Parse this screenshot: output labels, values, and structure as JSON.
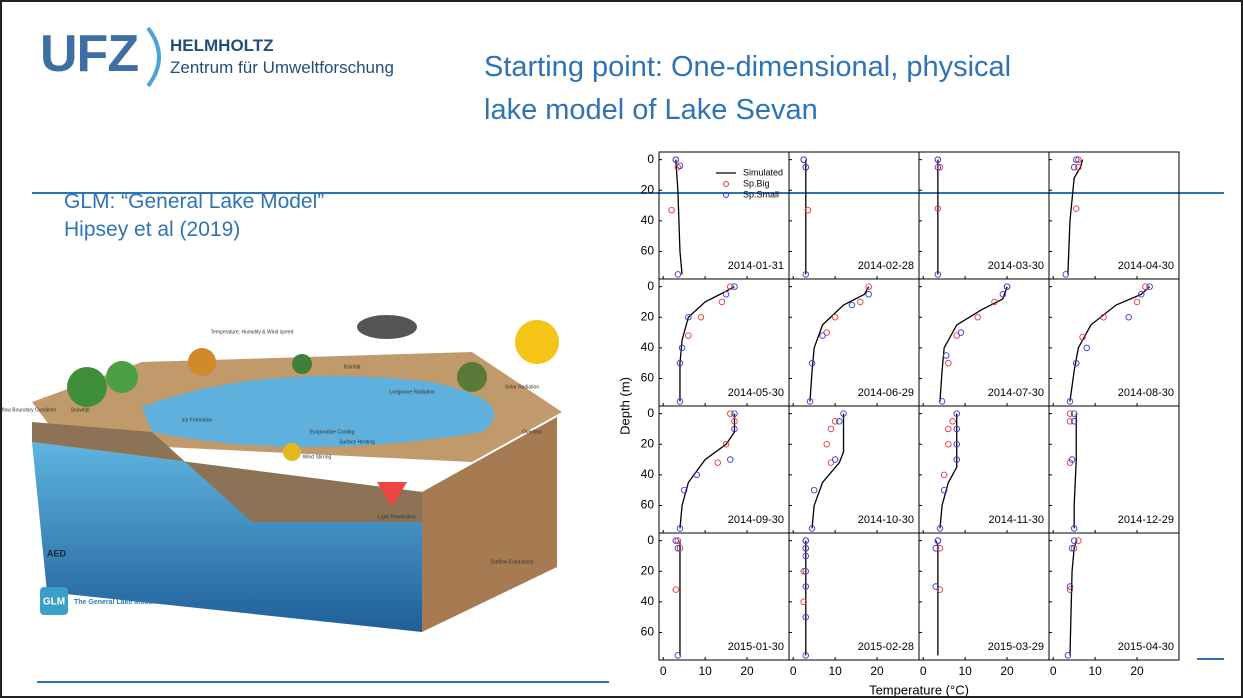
{
  "header": {
    "logo": "UFZ",
    "org": "HELMHOLTZ",
    "org_sub": "Zentrum für Umweltforschung",
    "title": "Starting point: One-dimensional, physical lake model of Lake Sevan"
  },
  "text": [
    "GLM: “General Lake Model”",
    "Hipsey et al (2019)"
  ],
  "figure": {
    "logo": "GLM",
    "caption": "The General Lake Model",
    "credit": "AED",
    "labels": [
      "Inflow Boundary Condition",
      "Snowfall",
      "Temperature, Humidity & Wind speed",
      "Rainfall",
      "Longwave Radiation",
      "Solar Radiation",
      "Ice Formation",
      "Evaporative Cooling",
      "Wind Stirring",
      "Surface Heating",
      "Light Penetration",
      "Overflow",
      "Outflow Extractions"
    ]
  },
  "chart_data": {
    "type": "profile",
    "ylabel": "Depth (m)",
    "xlabel": "Temperature (°C)",
    "xlim": [
      -1,
      30
    ],
    "ylim": [
      -5,
      78
    ],
    "y_inverted": true,
    "xticks": [
      0,
      10,
      20
    ],
    "yticks": [
      0,
      20,
      40,
      60
    ],
    "series": [
      {
        "name": "Simulated",
        "color": "#000000"
      },
      {
        "name": "Sp.Big",
        "color": "#e8383d"
      },
      {
        "name": "Sp.Small",
        "color": "#3a3acf"
      }
    ],
    "panels": [
      {
        "label": "2014-01-31",
        "simulated": {
          "x": [
            3,
            3.5,
            4,
            4.5
          ],
          "y": [
            0,
            20,
            60,
            75
          ]
        },
        "big": {
          "x": [
            3,
            3.5,
            2
          ],
          "y": [
            0,
            5,
            33
          ]
        },
        "small": {
          "x": [
            3,
            4,
            3.5
          ],
          "y": [
            0,
            4,
            75
          ]
        }
      },
      {
        "label": "2014-02-28",
        "simulated": {
          "x": [
            3,
            3,
            3,
            3
          ],
          "y": [
            0,
            5,
            40,
            75
          ]
        },
        "big": {
          "x": [
            2.5,
            3,
            3.5
          ],
          "y": [
            0,
            5,
            33
          ]
        },
        "small": {
          "x": [
            2.5,
            3,
            3
          ],
          "y": [
            0,
            5,
            75
          ]
        }
      },
      {
        "label": "2014-03-30",
        "simulated": {
          "x": [
            3.5,
            3.5,
            3.5
          ],
          "y": [
            0,
            40,
            75
          ]
        },
        "big": {
          "x": [
            3.5,
            4,
            3.5
          ],
          "y": [
            0,
            5,
            32
          ]
        },
        "small": {
          "x": [
            3.5,
            3.5,
            3.5
          ],
          "y": [
            0,
            5,
            75
          ]
        }
      },
      {
        "label": "2014-04-30",
        "simulated": {
          "x": [
            7,
            6.5,
            5,
            4,
            3.5
          ],
          "y": [
            0,
            5,
            12,
            40,
            75
          ]
        },
        "big": {
          "x": [
            6,
            6,
            5.5
          ],
          "y": [
            0,
            5,
            32
          ]
        },
        "small": {
          "x": [
            5.5,
            5,
            3
          ],
          "y": [
            0,
            5,
            75
          ]
        }
      },
      {
        "label": "2014-05-30",
        "simulated": {
          "x": [
            17,
            15,
            10,
            6,
            4.5,
            4,
            4
          ],
          "y": [
            0,
            3,
            10,
            20,
            35,
            50,
            75
          ]
        },
        "big": {
          "x": [
            16,
            14,
            9,
            6
          ],
          "y": [
            0,
            10,
            20,
            32
          ]
        },
        "small": {
          "x": [
            17,
            15,
            6,
            4.5,
            4,
            4
          ],
          "y": [
            0,
            5,
            20,
            40,
            50,
            75
          ]
        }
      },
      {
        "label": "2014-06-29",
        "simulated": {
          "x": [
            18,
            17,
            12,
            7,
            5,
            4.5,
            4
          ],
          "y": [
            0,
            5,
            12,
            25,
            40,
            55,
            75
          ]
        },
        "big": {
          "x": [
            18,
            16,
            10,
            8
          ],
          "y": [
            0,
            10,
            20,
            30
          ]
        },
        "small": {
          "x": [
            18,
            14,
            7,
            4.5,
            4
          ],
          "y": [
            5,
            12,
            32,
            50,
            75
          ]
        }
      },
      {
        "label": "2014-07-30",
        "simulated": {
          "x": [
            20,
            19,
            14,
            8,
            5,
            4.5,
            4
          ],
          "y": [
            0,
            8,
            15,
            25,
            40,
            55,
            75
          ]
        },
        "big": {
          "x": [
            20,
            17,
            13,
            8,
            6
          ],
          "y": [
            0,
            10,
            20,
            32,
            50
          ]
        },
        "small": {
          "x": [
            20,
            19,
            9,
            5.5,
            4.5
          ],
          "y": [
            0,
            5,
            30,
            45,
            75
          ]
        }
      },
      {
        "label": "2014-08-30",
        "simulated": {
          "x": [
            23,
            21,
            15,
            9,
            6,
            5,
            4
          ],
          "y": [
            0,
            5,
            12,
            25,
            40,
            55,
            75
          ]
        },
        "big": {
          "x": [
            22,
            20,
            12,
            7
          ],
          "y": [
            0,
            10,
            20,
            33
          ]
        },
        "small": {
          "x": [
            23,
            21,
            18,
            8,
            5.5,
            4
          ],
          "y": [
            0,
            5,
            20,
            40,
            50,
            75
          ]
        }
      },
      {
        "label": "2014-09-30",
        "simulated": {
          "x": [
            17,
            17,
            15,
            10,
            6,
            4.5,
            4
          ],
          "y": [
            0,
            12,
            20,
            30,
            45,
            60,
            75
          ]
        },
        "big": {
          "x": [
            16,
            17,
            15,
            13
          ],
          "y": [
            0,
            5,
            20,
            32
          ]
        },
        "small": {
          "x": [
            17,
            17,
            16,
            8,
            5,
            4
          ],
          "y": [
            0,
            10,
            30,
            40,
            50,
            75
          ]
        }
      },
      {
        "label": "2014-10-30",
        "simulated": {
          "x": [
            12,
            12,
            11,
            7,
            5,
            4.5
          ],
          "y": [
            0,
            25,
            32,
            45,
            60,
            75
          ]
        },
        "big": {
          "x": [
            10,
            9,
            8,
            9
          ],
          "y": [
            5,
            10,
            20,
            32
          ]
        },
        "small": {
          "x": [
            12,
            11,
            10,
            5,
            4.5
          ],
          "y": [
            0,
            5,
            30,
            50,
            75
          ]
        }
      },
      {
        "label": "2014-11-30",
        "simulated": {
          "x": [
            8,
            8,
            8,
            6,
            4.5,
            4
          ],
          "y": [
            0,
            20,
            35,
            45,
            60,
            75
          ]
        },
        "big": {
          "x": [
            7,
            6,
            6,
            5
          ],
          "y": [
            5,
            10,
            20,
            40
          ]
        },
        "small": {
          "x": [
            8,
            8,
            8,
            8,
            5,
            4
          ],
          "y": [
            0,
            10,
            20,
            30,
            50,
            75
          ]
        }
      },
      {
        "label": "2014-12-29",
        "simulated": {
          "x": [
            5.5,
            5.5,
            5,
            5
          ],
          "y": [
            0,
            30,
            60,
            75
          ]
        },
        "big": {
          "x": [
            4,
            4,
            4
          ],
          "y": [
            0,
            5,
            32
          ]
        },
        "small": {
          "x": [
            5,
            5,
            4.5,
            5
          ],
          "y": [
            0,
            5,
            30,
            75
          ]
        }
      },
      {
        "label": "2015-01-30",
        "simulated": {
          "x": [
            4,
            4,
            4,
            4
          ],
          "y": [
            0,
            30,
            60,
            75
          ]
        },
        "big": {
          "x": [
            3.5,
            4,
            3
          ],
          "y": [
            0,
            5,
            32
          ]
        },
        "small": {
          "x": [
            3,
            3.5,
            3.5
          ],
          "y": [
            0,
            5,
            75
          ]
        }
      },
      {
        "label": "2015-02-28",
        "simulated": {
          "x": [
            3,
            3,
            3,
            3
          ],
          "y": [
            0,
            5,
            40,
            75
          ]
        },
        "big": {
          "x": [
            3,
            3,
            2.5,
            2.5
          ],
          "y": [
            0,
            5,
            20,
            40
          ]
        },
        "small": {
          "x": [
            3,
            3,
            3,
            3,
            3,
            3,
            3
          ],
          "y": [
            0,
            5,
            10,
            20,
            30,
            50,
            75
          ]
        }
      },
      {
        "label": "2015-03-29",
        "simulated": {
          "x": [
            3,
            3.5,
            3.5,
            3.5
          ],
          "y": [
            0,
            3,
            40,
            75
          ]
        },
        "big": {
          "x": [
            3.5,
            4,
            4
          ],
          "y": [
            0,
            5,
            32
          ]
        },
        "small": {
          "x": [
            3.5,
            3,
            3
          ],
          "y": [
            0,
            5,
            30
          ]
        }
      },
      {
        "label": "2015-04-30",
        "simulated": {
          "x": [
            5.5,
            5,
            4.5,
            4
          ],
          "y": [
            0,
            5,
            20,
            75
          ]
        },
        "big": {
          "x": [
            6,
            5,
            4
          ],
          "y": [
            0,
            5,
            32
          ]
        },
        "small": {
          "x": [
            5,
            4.5,
            4,
            3.5
          ],
          "y": [
            0,
            5,
            30,
            75
          ]
        }
      }
    ]
  }
}
